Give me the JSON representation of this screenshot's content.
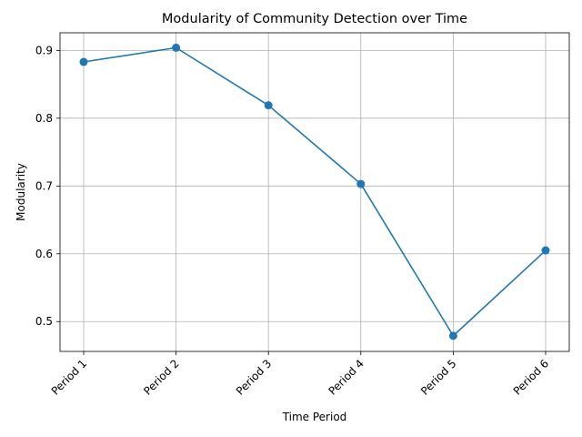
{
  "chart_data": {
    "type": "line",
    "title": "Modularity of Community Detection over Time",
    "xlabel": "Time Period",
    "ylabel": "Modularity",
    "categories": [
      "Period 1",
      "Period 2",
      "Period 3",
      "Period 4",
      "Period 5",
      "Period 6"
    ],
    "series": [
      {
        "values": [
          0.883,
          0.904,
          0.819,
          0.703,
          0.479,
          0.605
        ],
        "color": "#1f77b4",
        "marker": "circle"
      }
    ],
    "ylim": [
      0.456,
      0.926
    ],
    "yticks": [
      0.5,
      0.6,
      0.7,
      0.8,
      0.9
    ],
    "ytick_labels": [
      "0.5",
      "0.6",
      "0.7",
      "0.8",
      "0.9"
    ],
    "grid": true,
    "xtick_rotation": 45
  }
}
